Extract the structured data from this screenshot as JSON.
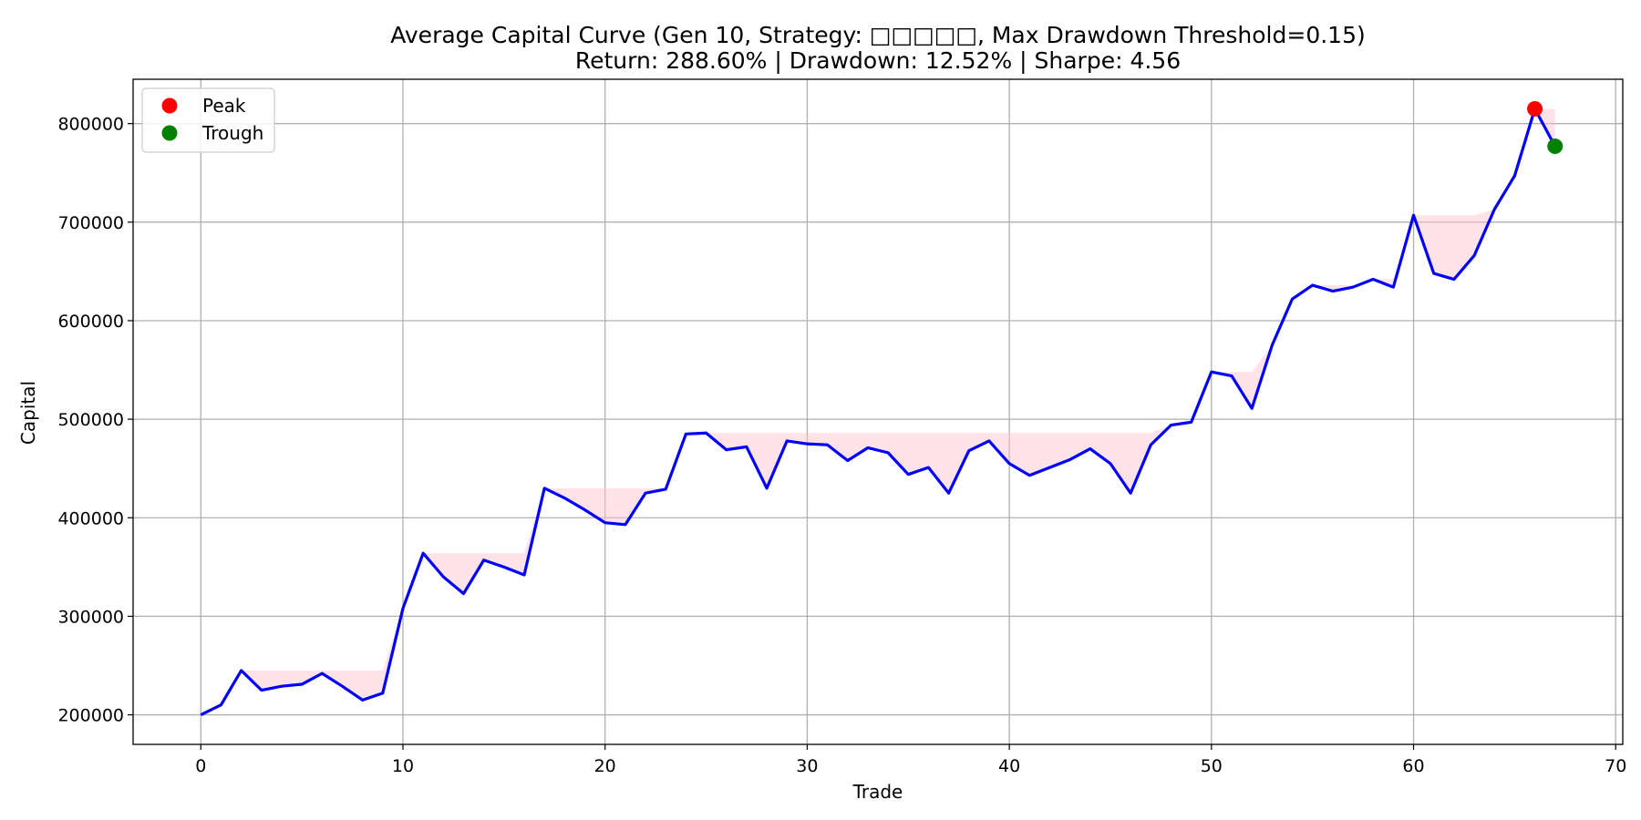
{
  "chart_data": {
    "type": "line",
    "title": "Average Capital Curve (Gen 10, Strategy: □□□□□, Max Drawdown Threshold=0.15)",
    "subtitle": "Return: 288.60% | Drawdown: 12.52% | Sharpe: 4.56",
    "xlabel": "Trade",
    "ylabel": "Capital",
    "xlim": [
      -3.35,
      70.35
    ],
    "ylim": [
      170000,
      845000
    ],
    "xticks": [
      0,
      10,
      20,
      30,
      40,
      50,
      60,
      70
    ],
    "yticks": [
      200000,
      300000,
      400000,
      500000,
      600000,
      700000,
      800000
    ],
    "grid": true,
    "legend_position": "top-left",
    "series": [
      {
        "name": "Capital",
        "color": "#0000ff",
        "x": [
          0,
          1,
          2,
          3,
          4,
          5,
          6,
          7,
          8,
          9,
          10,
          11,
          12,
          13,
          14,
          15,
          16,
          17,
          18,
          19,
          20,
          21,
          22,
          23,
          24,
          25,
          26,
          27,
          28,
          29,
          30,
          31,
          32,
          33,
          34,
          35,
          36,
          37,
          38,
          39,
          40,
          41,
          42,
          43,
          44,
          45,
          46,
          47,
          48,
          49,
          50,
          51,
          52,
          53,
          54,
          55,
          56,
          57,
          58,
          59,
          60,
          61,
          62,
          63,
          64,
          65,
          66,
          67
        ],
        "values": [
          200000,
          210000,
          245000,
          225000,
          229000,
          231000,
          242000,
          229000,
          215000,
          222000,
          308000,
          364000,
          340000,
          323000,
          357000,
          350000,
          342000,
          430000,
          420000,
          408000,
          395000,
          393000,
          425000,
          429000,
          485000,
          486000,
          469000,
          472000,
          430000,
          478000,
          475000,
          474000,
          458000,
          471000,
          466000,
          444000,
          451000,
          425000,
          468000,
          478000,
          455000,
          443000,
          451000,
          459000,
          470000,
          455000,
          425000,
          474000,
          494000,
          497000,
          548000,
          544000,
          511000,
          575000,
          622000,
          636000,
          630000,
          634000,
          642000,
          634000,
          707000,
          648000,
          642000,
          666000,
          713000,
          747000,
          815000,
          777000
        ]
      }
    ],
    "markers": [
      {
        "name": "Peak",
        "x": 66,
        "y": 815000,
        "color": "#ff0000"
      },
      {
        "name": "Trough",
        "x": 67,
        "y": 777000,
        "color": "#008000"
      }
    ],
    "drawdown_fill_color": "#ffc0cb"
  }
}
